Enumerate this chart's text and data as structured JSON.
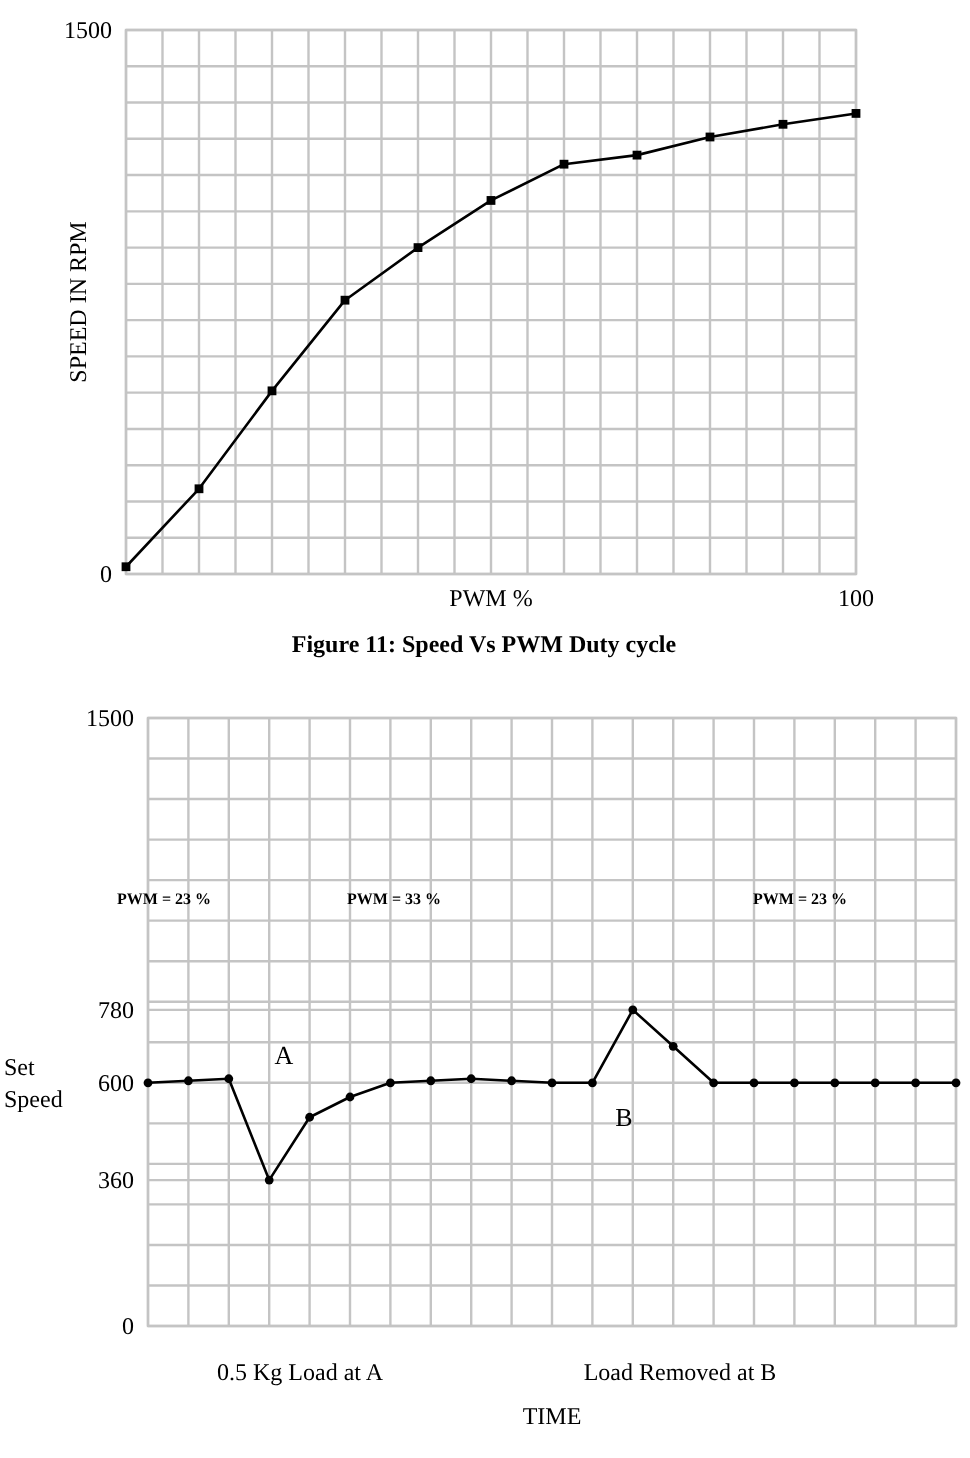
{
  "chart_data": [
    {
      "type": "line",
      "xlabel": "PWM %",
      "ylabel": "SPEED IN RPM",
      "categories": [
        null,
        null,
        null,
        null,
        null,
        null,
        null,
        null,
        null,
        null,
        "100"
      ],
      "series": [
        {
          "color": "#000000",
          "values": [
            20,
            235,
            505,
            755,
            900,
            1030,
            1130,
            1155,
            1205,
            1240,
            1270
          ]
        }
      ],
      "ylim": [
        0,
        1500
      ],
      "yticks": [
        0,
        {
          "value": 100,
          "label": null
        },
        {
          "value": 200,
          "label": null
        },
        {
          "value": 300,
          "label": null
        },
        {
          "value": 400,
          "label": null
        },
        {
          "value": 500,
          "label": null
        },
        {
          "value": 600,
          "label": null
        },
        {
          "value": 700,
          "label": null
        },
        {
          "value": 800,
          "label": null
        },
        {
          "value": 900,
          "label": null
        },
        {
          "value": 1000,
          "label": null
        },
        {
          "value": 1100,
          "label": null
        },
        {
          "value": 1200,
          "label": null
        },
        {
          "value": 1300,
          "label": null
        },
        {
          "value": 1400,
          "label": null
        },
        1500
      ],
      "grid": true,
      "marker": "square",
      "line_style": "solid",
      "annotations": [
        "Figure 11: Speed Vs PWM Duty cycle"
      ]
    },
    {
      "type": "line",
      "xlabel": "TIME",
      "ylabel": "Set Speed",
      "categories": [
        null,
        null,
        null,
        null,
        null,
        null,
        null,
        null,
        null,
        null,
        null,
        null,
        null,
        null,
        null,
        null,
        null,
        null,
        null,
        null,
        null
      ],
      "series": [
        {
          "color": "#000000",
          "values": [
            600,
            605,
            610,
            360,
            515,
            565,
            600,
            605,
            610,
            605,
            600,
            600,
            780,
            690,
            600,
            600,
            600,
            600,
            600,
            600,
            600
          ]
        }
      ],
      "ylim": [
        0,
        1500
      ],
      "yticks": [
        0,
        {
          "value": 100,
          "label": null
        },
        {
          "value": 200,
          "label": null
        },
        {
          "value": 300,
          "label": null
        },
        360,
        {
          "value": 400,
          "label": null
        },
        {
          "value": 500,
          "label": null
        },
        600,
        {
          "value": 700,
          "label": null
        },
        780,
        {
          "value": 800,
          "label": null
        },
        {
          "value": 900,
          "label": null
        },
        {
          "value": 1000,
          "label": null
        },
        {
          "value": 1100,
          "label": null
        },
        {
          "value": 1200,
          "label": null
        },
        {
          "value": 1300,
          "label": null
        },
        {
          "value": 1400,
          "label": null
        },
        1500
      ],
      "grid": true,
      "marker": "circle",
      "line_style": "solid",
      "annotations": [
        "A",
        "B",
        "PWM = 23 %",
        "PWM = 33 %",
        "PWM = 23 %",
        "0.5 Kg Load at A",
        "Load Removed at B"
      ]
    }
  ]
}
